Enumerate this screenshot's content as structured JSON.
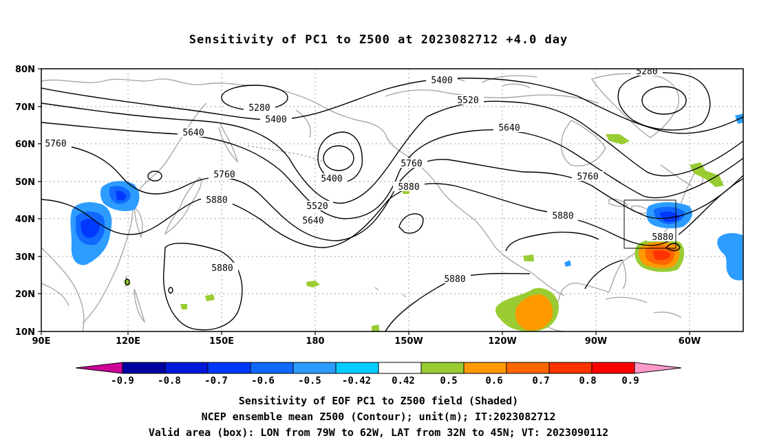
{
  "title": "Sensitivity of PC1 to Z500 at 2023082712 +4.0 day",
  "map": {
    "lat_labels": [
      "80N",
      "70N",
      "60N",
      "50N",
      "40N",
      "30N",
      "20N",
      "10N"
    ],
    "lon_labels": [
      "90E",
      "120E",
      "150E",
      "180",
      "150W",
      "120W",
      "90W",
      "60W"
    ],
    "contour_labels": {
      "c5280a": "5280",
      "c5280b": "5280",
      "c5400a": "5400",
      "c5400b": "5400",
      "c5400c": "5400",
      "c5520a": "5520",
      "c5520b": "5520",
      "c5640a": "5640",
      "c5640b": "5640",
      "c5640c": "5640",
      "c5760a": "5760",
      "c5760b": "5760",
      "c5760c": "5760",
      "c5760d": "5760",
      "c5880a": "5880",
      "c5880b": "5880",
      "c5880c": "5880",
      "c5880d": "5880",
      "c5880e": "5880",
      "c5880f": "5880"
    },
    "box_label": "Valid area box"
  },
  "colorbar": {
    "labels": [
      "-0.9",
      "-0.8",
      "-0.7",
      "-0.6",
      "-0.5",
      "-0.42",
      "0.42",
      "0.5",
      "0.6",
      "0.7",
      "0.8",
      "0.9"
    ],
    "colors": [
      "#0000a0",
      "#0018d8",
      "#0038ff",
      "#1068ff",
      "#2c9cff",
      "#00ccff",
      "#ffffff",
      "#99cc33",
      "#ff9900",
      "#ff6600",
      "#ff3300",
      "#ff0000"
    ],
    "low_arrow_color": "#cc0099",
    "high_arrow_color": "#ff99cc"
  },
  "captions": {
    "line1": "Sensitivity of EOF PC1 to Z500 field (Shaded)",
    "line2": "NCEP ensemble mean Z500 (Contour); unit(m); IT:2023082712",
    "line3": "Valid area (box): LON from 79W to 62W, LAT from 32N to 45N; VT: 2023090112"
  }
}
